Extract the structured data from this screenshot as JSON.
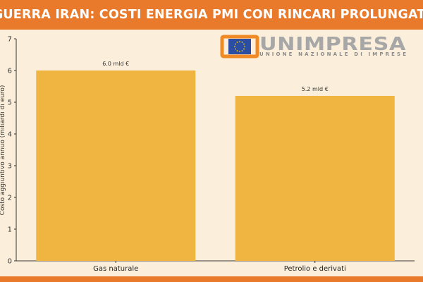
{
  "header": {
    "title": "GUERRA IRAN: COSTI ENERGIA PMI CON RINCARI PROLUNGATI",
    "color": "#e9792b"
  },
  "logo": {
    "name": "UNIMPRESA",
    "tagline": "UNIONE NAZIONALE DI IMPRESE",
    "brand_color": "#f08a24",
    "text_color": "#8a8a8a"
  },
  "chart_data": {
    "type": "bar",
    "categories": [
      "Gas naturale",
      "Petrolio e derivati"
    ],
    "values": [
      6.0,
      5.2
    ],
    "data_labels": [
      "6.0 mld €",
      "5.2 mld €"
    ],
    "ylabel": "Costo aggiuntivo annuo (miliardi di euro)",
    "ylim": [
      0,
      7
    ],
    "yticks": [
      0,
      1,
      2,
      3,
      4,
      5,
      6,
      7
    ],
    "bar_color": "#f0b441",
    "grid": false,
    "legend": "none"
  }
}
